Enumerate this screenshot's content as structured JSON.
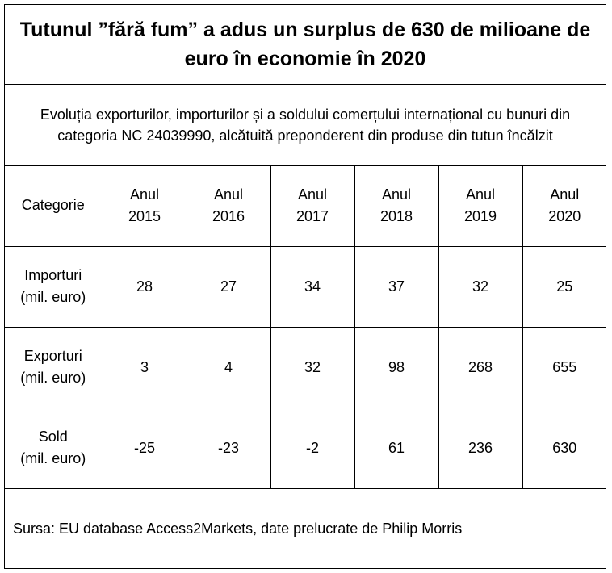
{
  "title": "Tutunul ”fără fum” a adus un surplus de 630 de milioane de euro în economie în 2020",
  "subtitle": "Evoluția exporturilor, importurilor și a soldului comerțului internațional cu bunuri din categoria  NC 24039990, alcătuită preponderent din produse din tutun încălzit",
  "table": {
    "corner_label": "Categorie",
    "columns": [
      {
        "line1": "Anul",
        "line2": "2015"
      },
      {
        "line1": "Anul",
        "line2": "2016"
      },
      {
        "line1": "Anul",
        "line2": "2017"
      },
      {
        "line1": "Anul",
        "line2": "2018"
      },
      {
        "line1": "Anul",
        "line2": "2019"
      },
      {
        "line1": "Anul",
        "line2": "2020"
      }
    ],
    "rows": [
      {
        "label1": "Importuri",
        "label2": "(mil. euro)",
        "values": [
          "28",
          "27",
          "34",
          "37",
          "32",
          "25"
        ]
      },
      {
        "label1": "Exporturi",
        "label2": "(mil. euro)",
        "values": [
          "3",
          "4",
          "32",
          "98",
          "268",
          "655"
        ]
      },
      {
        "label1": "Sold",
        "label2": "(mil. euro)",
        "values": [
          "-25",
          "-23",
          "-2",
          "61",
          "236",
          "630"
        ]
      }
    ]
  },
  "source": "Sursa: EU database Access2Markets, date prelucrate de Philip Morris"
}
